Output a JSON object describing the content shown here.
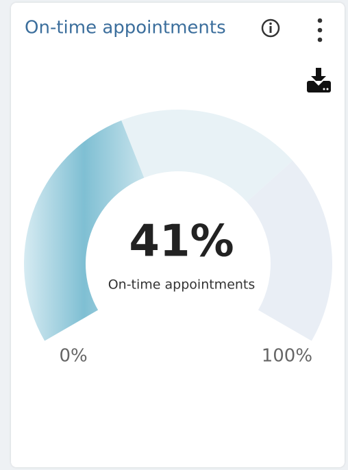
{
  "chart_data": {
    "type": "gauge",
    "title": "On-time appointments",
    "label": "On-time appointments",
    "value": 41,
    "value_label": "41%",
    "color": "#6fb6cc",
    "ylim": [
      0,
      100
    ],
    "yticks": [
      {
        "value": 0,
        "label": "0%"
      },
      {
        "value": 100,
        "label": "100%"
      }
    ],
    "thresholds": [
      70
    ],
    "band_colors": [
      "#e8f2f6",
      "#e9eef5"
    ]
  }
}
